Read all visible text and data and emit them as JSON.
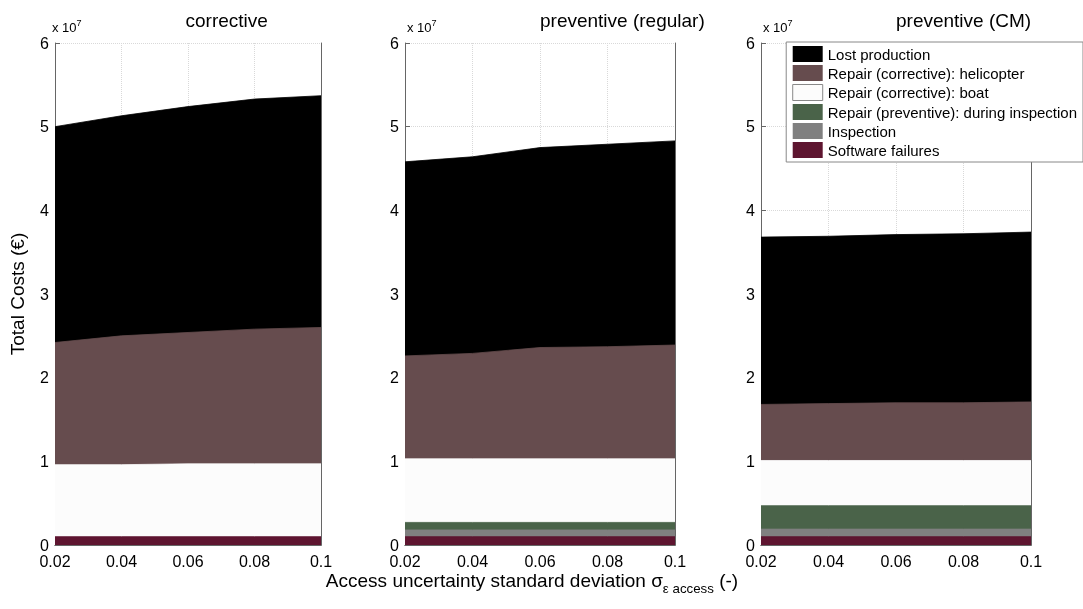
{
  "chart_data": [
    {
      "type": "area",
      "title": "corrective",
      "ylabel": "Total Costs (€)",
      "annotations": [
        "x 10$^{7}$"
      ],
      "stacked": true,
      "grid": true,
      "legend": false,
      "x": [
        0.02,
        0.04,
        0.06,
        0.08,
        0.1
      ],
      "xlim": [
        0.02,
        0.1
      ],
      "xticks": [
        0.02,
        0.04,
        0.06,
        0.08,
        0.1
      ],
      "ylim": [
        0,
        6
      ],
      "yticks": [
        0,
        1,
        2,
        3,
        4,
        5,
        6
      ],
      "series": [
        {
          "color": "#5e1530",
          "values": [
            0.1,
            0.1,
            0.1,
            0.1,
            0.1
          ]
        },
        {
          "color": "#fcfcfc",
          "values": [
            0.86,
            0.86,
            0.87,
            0.87,
            0.87
          ]
        },
        {
          "color": "#664c4e",
          "values": [
            1.46,
            1.54,
            1.57,
            1.61,
            1.63
          ]
        },
        {
          "color": "#000000",
          "values": [
            2.58,
            2.63,
            2.7,
            2.75,
            2.77
          ]
        }
      ]
    },
    {
      "type": "area",
      "title": "preventive (regular)",
      "xlabel": "Access uncertainty standard deviation σ$_{ε access}$ (-)",
      "annotations": [
        "x 10$^{7}$"
      ],
      "stacked": true,
      "grid": true,
      "legend": false,
      "x": [
        0.02,
        0.04,
        0.06,
        0.08,
        0.1
      ],
      "xlim": [
        0.02,
        0.1
      ],
      "xticks": [
        0.02,
        0.04,
        0.06,
        0.08,
        0.1
      ],
      "ylim": [
        0,
        6
      ],
      "yticks": [
        0,
        1,
        2,
        3,
        4,
        5,
        6
      ],
      "series": [
        {
          "color": "#5e1530",
          "values": [
            0.1,
            0.1,
            0.1,
            0.1,
            0.1
          ]
        },
        {
          "color": "#808080",
          "values": [
            0.08,
            0.08,
            0.08,
            0.08,
            0.08
          ]
        },
        {
          "color": "#4a6349",
          "values": [
            0.09,
            0.09,
            0.09,
            0.09,
            0.09
          ]
        },
        {
          "color": "#fcfcfc",
          "values": [
            0.76,
            0.76,
            0.76,
            0.76,
            0.76
          ]
        },
        {
          "color": "#664c4e",
          "values": [
            1.23,
            1.26,
            1.33,
            1.34,
            1.36
          ]
        },
        {
          "color": "#000000",
          "values": [
            2.32,
            2.35,
            2.39,
            2.42,
            2.44
          ]
        }
      ]
    },
    {
      "type": "area",
      "title": "preventive (CM)",
      "annotations": [
        "x 10$^{7}$"
      ],
      "stacked": true,
      "grid": true,
      "legend": "top right",
      "x": [
        0.02,
        0.04,
        0.06,
        0.08,
        0.1
      ],
      "xlim": [
        0.02,
        0.1
      ],
      "xticks": [
        0.02,
        0.04,
        0.06,
        0.08,
        0.1
      ],
      "ylim": [
        0,
        6
      ],
      "yticks": [
        0,
        1,
        2,
        3,
        4,
        5,
        6
      ],
      "series": [
        {
          "name": "Software failures",
          "color": "#5e1530",
          "values": [
            0.1,
            0.1,
            0.1,
            0.1,
            0.1
          ]
        },
        {
          "name": "Inspection",
          "color": "#808080",
          "values": [
            0.09,
            0.09,
            0.09,
            0.09,
            0.09
          ]
        },
        {
          "name": "Repair (preventive): during inspection",
          "color": "#4a6349",
          "values": [
            0.28,
            0.28,
            0.28,
            0.28,
            0.28
          ]
        },
        {
          "name": "Repair (corrective): boat",
          "color": "#fcfcfc",
          "values": [
            0.54,
            0.54,
            0.54,
            0.54,
            0.54
          ]
        },
        {
          "name": "Repair (corrective): helicopter",
          "color": "#664c4e",
          "values": [
            0.67,
            0.68,
            0.69,
            0.69,
            0.7
          ]
        },
        {
          "name": "Lost production",
          "color": "#000000",
          "values": [
            2.0,
            2.0,
            2.01,
            2.02,
            2.03
          ]
        }
      ]
    }
  ]
}
